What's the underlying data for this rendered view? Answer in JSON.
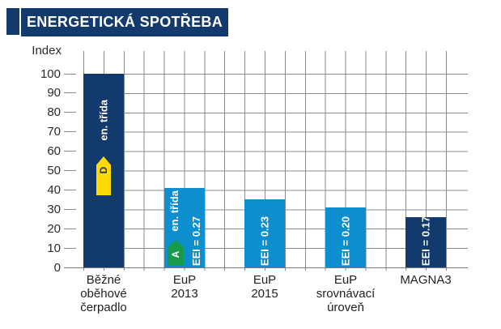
{
  "chart_data": {
    "type": "bar",
    "title": "ENERGETICKÁ SPOTŘEBA",
    "ylabel": "Index",
    "ylim": [
      0,
      100
    ],
    "ytick_step": 10,
    "yticks": [
      100,
      90,
      80,
      70,
      60,
      50,
      40,
      30,
      20,
      10,
      0
    ],
    "grid": "both",
    "legend": "none",
    "categories": [
      "Běžné oběhové čerpadlo",
      "EuP 2013",
      "EuP 2015",
      "EuP srovnávací úroveň",
      "MAGNA3"
    ],
    "values": [
      100,
      41,
      35,
      31,
      26
    ],
    "colors": {
      "dark_blue": "#133a6d",
      "light_blue": "#0d8ecf",
      "badge_yellow": "#ffd908",
      "badge_green": "#179a49",
      "grid_line": "#888888",
      "axis_text": "#2a2a2a",
      "title_bg": "#133a6d",
      "title_text": "#ffffff",
      "bar_text": "#ffffff"
    },
    "bars": [
      {
        "category": "Běžné\noběhové\nčerpadlo",
        "value": 100,
        "color": "#133a6d",
        "class_label": "en. třída",
        "energy_class": "D"
      },
      {
        "category": "EuP\n2013",
        "value": 41,
        "color": "#0d8ecf",
        "class_label": "en. třída",
        "energy_class": "A",
        "eei_label": "EEI = 0.27"
      },
      {
        "category": "EuP\n2015",
        "value": 35,
        "color": "#0d8ecf",
        "eei_label": "EEI = 0.23"
      },
      {
        "category": "EuP\nsrovnávací\núroveň",
        "value": 31,
        "color": "#0d8ecf",
        "eei_label": "EEI = 0.20"
      },
      {
        "category": "MAGNA3",
        "value": 26,
        "color": "#133a6d",
        "eei_label": "EEI = 0.17"
      }
    ]
  }
}
